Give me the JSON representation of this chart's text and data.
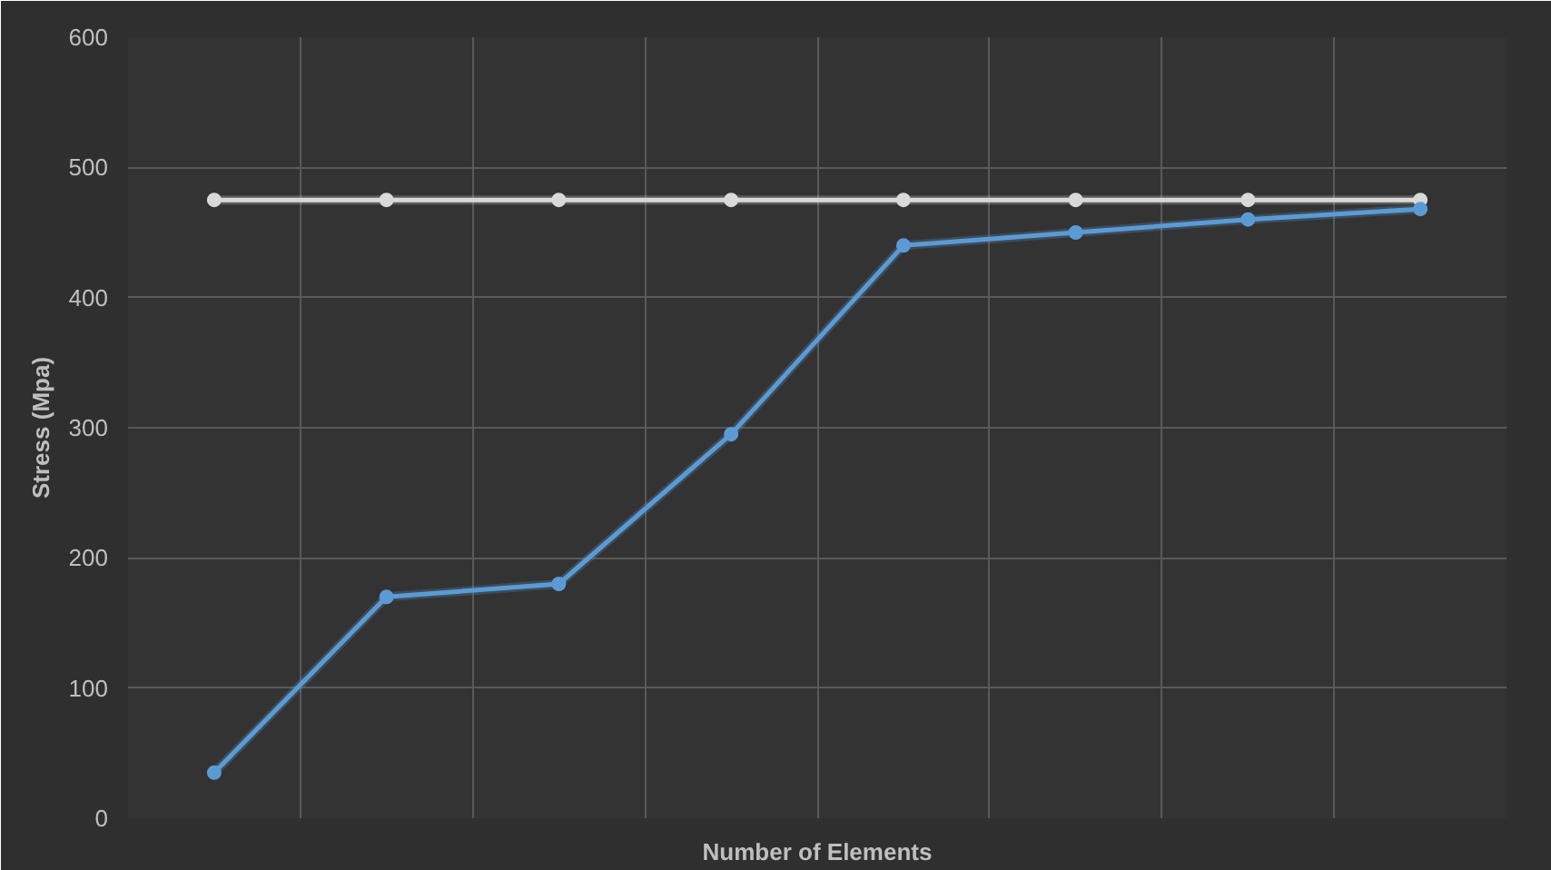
{
  "chart_data": {
    "type": "line",
    "xlabel": "Number of Elements",
    "ylabel": "Stress (Mpa)",
    "categories": [
      null,
      null,
      null,
      null,
      null,
      null,
      null,
      null
    ],
    "series": [
      {
        "color": "#d9d9d9",
        "values": [
          475,
          475,
          475,
          475,
          475,
          475,
          475,
          475
        ]
      },
      {
        "color": "#5b9bd5",
        "values": [
          35,
          170,
          180,
          295,
          440,
          450,
          460,
          468
        ]
      }
    ],
    "ylim": [
      0,
      600
    ],
    "yticks": [
      0,
      100,
      200,
      300,
      400,
      500,
      600
    ],
    "grid": true,
    "marker": "circle",
    "line_style": "solid"
  }
}
